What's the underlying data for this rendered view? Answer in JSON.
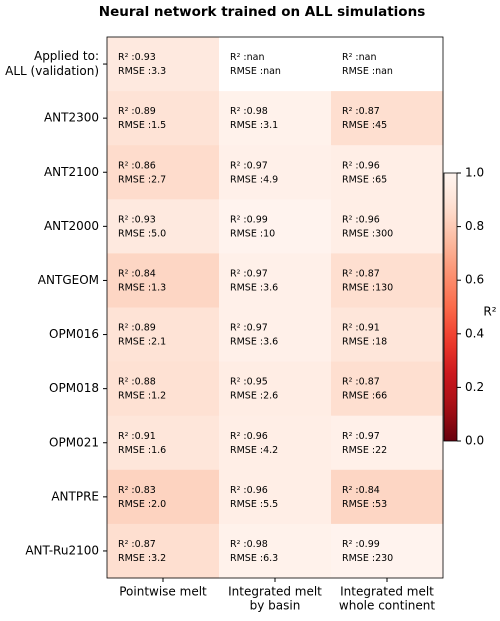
{
  "chart_data": {
    "type": "heatmap",
    "title": "Neural network trained on ALL simulations",
    "rows": [
      [
        "Applied to:",
        "ALL (validation)"
      ],
      [
        "ANT2300"
      ],
      [
        "ANT2100"
      ],
      [
        "ANT2000"
      ],
      [
        "ANTGEOM"
      ],
      [
        "OPM016"
      ],
      [
        "OPM018"
      ],
      [
        "OPM021"
      ],
      [
        "ANTPRE"
      ],
      [
        "ANT-Ru2100"
      ]
    ],
    "columns": [
      [
        "Pointwise melt"
      ],
      [
        "Integrated melt",
        "by basin"
      ],
      [
        "Integrated melt",
        "whole continent"
      ]
    ],
    "r2_prefix": "R² :",
    "rmse_prefix": "RMSE :",
    "r2": [
      [
        0.93,
        null,
        null
      ],
      [
        0.89,
        0.98,
        0.87
      ],
      [
        0.86,
        0.97,
        0.96
      ],
      [
        0.93,
        0.99,
        0.96
      ],
      [
        0.84,
        0.97,
        0.87
      ],
      [
        0.89,
        0.97,
        0.91
      ],
      [
        0.88,
        0.95,
        0.87
      ],
      [
        0.91,
        0.96,
        0.97
      ],
      [
        0.83,
        0.96,
        0.84
      ],
      [
        0.87,
        0.98,
        0.99
      ]
    ],
    "r2_labels": [
      [
        "0.93",
        "nan",
        "nan"
      ],
      [
        "0.89",
        "0.98",
        "0.87"
      ],
      [
        "0.86",
        "0.97",
        "0.96"
      ],
      [
        "0.93",
        "0.99",
        "0.96"
      ],
      [
        "0.84",
        "0.97",
        "0.87"
      ],
      [
        "0.89",
        "0.97",
        "0.91"
      ],
      [
        "0.88",
        "0.95",
        "0.87"
      ],
      [
        "0.91",
        "0.96",
        "0.97"
      ],
      [
        "0.83",
        "0.96",
        "0.84"
      ],
      [
        "0.87",
        "0.98",
        "0.99"
      ]
    ],
    "rmse": [
      [
        3.3,
        null,
        null
      ],
      [
        1.5,
        3.1,
        45
      ],
      [
        2.7,
        4.9,
        65
      ],
      [
        5.0,
        10,
        300
      ],
      [
        1.3,
        3.6,
        130
      ],
      [
        2.1,
        3.6,
        18
      ],
      [
        1.2,
        2.6,
        66
      ],
      [
        1.6,
        4.2,
        22
      ],
      [
        2.0,
        5.5,
        53
      ],
      [
        3.2,
        6.3,
        230
      ]
    ],
    "rmse_labels": [
      [
        "3.3",
        "nan",
        "nan"
      ],
      [
        "1.5",
        "3.1",
        "45"
      ],
      [
        "2.7",
        "4.9",
        "65"
      ],
      [
        "5.0",
        "10",
        "300"
      ],
      [
        "1.3",
        "3.6",
        "130"
      ],
      [
        "2.1",
        "3.6",
        "18"
      ],
      [
        "1.2",
        "2.6",
        "66"
      ],
      [
        "1.6",
        "4.2",
        "22"
      ],
      [
        "2.0",
        "5.5",
        "53"
      ],
      [
        "3.2",
        "6.3",
        "230"
      ]
    ],
    "colormap": "Reds_r",
    "clim": [
      0,
      1
    ],
    "cticks": [
      {
        "value": 0,
        "label": "0.0"
      },
      0.2,
      0.4,
      0.6,
      0.8,
      {
        "value": 1,
        "label": "1.0"
      }
    ],
    "colorbar_label": "R²"
  }
}
